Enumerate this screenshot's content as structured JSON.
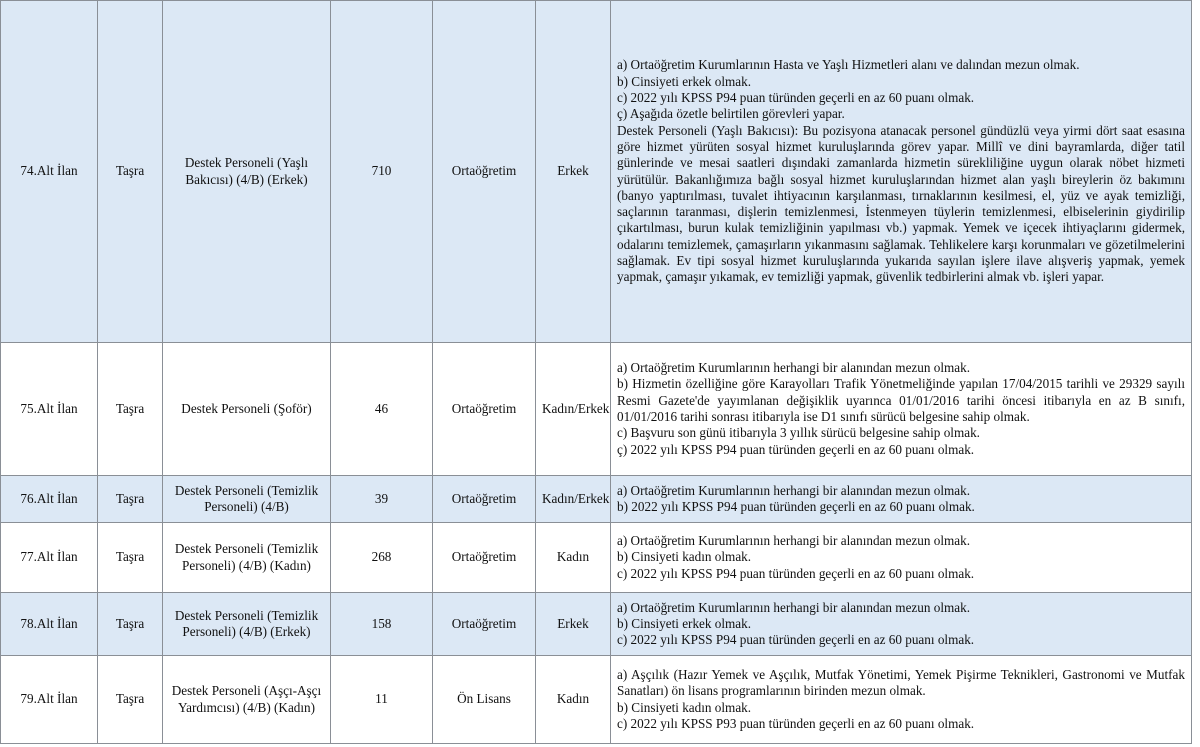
{
  "colors": {
    "shaded_row": "#dce8f5",
    "border": "#8a8f96"
  },
  "rows": [
    {
      "no": "74.Alt İlan",
      "location": "Taşra",
      "title": "Destek Personeli (Yaşlı Bakıcısı) (4/B) (Erkek)",
      "count": "710",
      "education": "Ortaöğretim",
      "gender": "Erkek",
      "shaded": true,
      "requirements": [
        "a) Ortaöğretim Kurumlarının Hasta ve Yaşlı Hizmetleri alanı ve dalından mezun olmak.",
        "b) Cinsiyeti erkek olmak.",
        "c) 2022 yılı KPSS P94 puan türünden geçerli en az 60 puanı olmak.",
        "ç) Aşağıda özetle belirtilen görevleri yapar.",
        "Destek Personeli (Yaşlı Bakıcısı): Bu pozisyona atanacak personel gündüzlü veya yirmi dört saat esasına göre hizmet yürüten sosyal hizmet kuruluşlarında görev yapar. Millî ve dini bayramlarda, diğer tatil günlerinde ve mesai saatleri dışındaki zamanlarda hizmetin sürekliliğine uygun olarak nöbet hizmeti yürütülür. Bakanlığımıza bağlı sosyal hizmet kuruluşlarından hizmet alan yaşlı bireylerin öz bakımını (banyo yaptırılması, tuvalet ihtiyacının karşılanması, tırnaklarının kesilmesi, el, yüz ve ayak temizliği, saçlarının taranması, dişlerin temizlenmesi, İstenmeyen tüylerin temizlenmesi, elbiselerinin giydirilip çıkartılması, burun kulak temizliğinin yapılması vb.) yapmak. Yemek ve içecek ihtiyaçlarını gidermek, odalarını temizlemek, çamaşırların yıkanmasını sağlamak. Tehlikelere karşı korunmaları ve gözetilmelerini sağlamak. Ev tipi sosyal hizmet kuruluşlarında yukarıda sayılan işlere ilave alışveriş yapmak, yemek yapmak, çamaşır yıkamak, ev temizliği yapmak, güvenlik tedbirlerini almak vb. işleri yapar."
      ]
    },
    {
      "no": "75.Alt İlan",
      "location": "Taşra",
      "title": "Destek Personeli (Şoför)",
      "count": "46",
      "education": "Ortaöğretim",
      "gender": "Kadın/Erkek",
      "shaded": false,
      "requirements": [
        "a) Ortaöğretim Kurumlarının herhangi bir alanından mezun olmak.",
        "b) Hizmetin özelliğine göre Karayolları Trafik Yönetmeliğinde yapılan 17/04/2015 tarihli ve 29329 sayılı Resmi Gazete'de yayımlanan değişiklik uyarınca 01/01/2016 tarihi öncesi itibarıyla en az B sınıfı, 01/01/2016 tarihi sonrası itibarıyla ise D1 sınıfı sürücü belgesine sahip olmak.",
        "c) Başvuru son günü itibarıyla 3 yıllık sürücü belgesine sahip olmak.",
        "ç) 2022 yılı KPSS P94 puan türünden geçerli en az 60 puanı olmak."
      ]
    },
    {
      "no": "76.Alt İlan",
      "location": "Taşra",
      "title": "Destek Personeli (Temizlik Personeli) (4/B)",
      "count": "39",
      "education": "Ortaöğretim",
      "gender": "Kadın/Erkek",
      "shaded": true,
      "requirements": [
        "a) Ortaöğretim Kurumlarının herhangi bir alanından mezun olmak.",
        "b) 2022 yılı KPSS P94 puan türünden geçerli en az 60 puanı olmak."
      ]
    },
    {
      "no": "77.Alt İlan",
      "location": "Taşra",
      "title": "Destek Personeli (Temizlik Personeli) (4/B) (Kadın)",
      "count": "268",
      "education": "Ortaöğretim",
      "gender": "Kadın",
      "shaded": false,
      "requirements": [
        "a) Ortaöğretim Kurumlarının herhangi bir alanından mezun olmak.",
        "b) Cinsiyeti kadın olmak.",
        "c) 2022 yılı KPSS P94 puan türünden geçerli en az 60 puanı olmak."
      ]
    },
    {
      "no": "78.Alt İlan",
      "location": "Taşra",
      "title": "Destek Personeli (Temizlik Personeli) (4/B) (Erkek)",
      "count": "158",
      "education": "Ortaöğretim",
      "gender": "Erkek",
      "shaded": true,
      "requirements": [
        "a) Ortaöğretim Kurumlarının herhangi bir alanından mezun olmak.",
        "b) Cinsiyeti erkek olmak.",
        "c) 2022 yılı KPSS P94 puan türünden geçerli en az 60 puanı olmak."
      ]
    },
    {
      "no": "79.Alt İlan",
      "location": "Taşra",
      "title": "Destek Personeli (Aşçı-Aşçı Yardımcısı) (4/B) (Kadın)",
      "count": "11",
      "education": "Ön Lisans",
      "gender": "Kadın",
      "shaded": false,
      "requirements": [
        "a) Aşçılık (Hazır Yemek ve Aşçılık, Mutfak Yönetimi, Yemek Pişirme Teknikleri, Gastronomi ve Mutfak Sanatları) ön lisans programlarının birinden mezun olmak.",
        "b) Cinsiyeti kadın olmak.",
        "c) 2022 yılı KPSS P93 puan türünden geçerli en az 60 puanı olmak."
      ]
    }
  ]
}
